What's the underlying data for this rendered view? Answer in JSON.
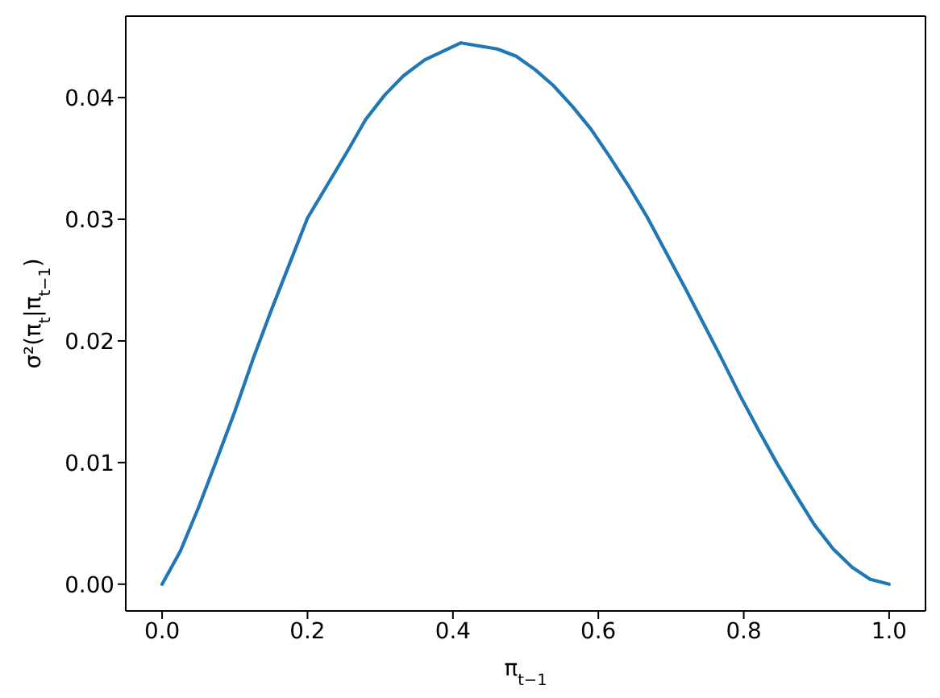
{
  "chart_data": {
    "type": "line",
    "xlabel": "π$_{t−1}$",
    "ylabel": "σ²(π$_{t}$|π$_{t−1}$)",
    "color": "#1f77b4",
    "line_style": "solid",
    "x": [
      0,
      0.025,
      0.05,
      0.075,
      0.1,
      0.125,
      0.15,
      0.175,
      0.2,
      0.231,
      0.256,
      0.28,
      0.306,
      0.332,
      0.361,
      0.411,
      0.461,
      0.487,
      0.513,
      0.538,
      0.564,
      0.59,
      0.615,
      0.641,
      0.667,
      0.692,
      0.718,
      0.744,
      0.77,
      0.795,
      0.821,
      0.846,
      0.872,
      0.897,
      0.923,
      0.949,
      0.974,
      1.0
    ],
    "values": [
      0,
      0.0027,
      0.0063,
      0.0102,
      0.0142,
      0.0185,
      0.0225,
      0.0263,
      0.0301,
      0.0332,
      0.0357,
      0.0382,
      0.0402,
      0.0418,
      0.0431,
      0.0445,
      0.044,
      0.0434,
      0.0423,
      0.041,
      0.0393,
      0.0374,
      0.0352,
      0.0328,
      0.0302,
      0.0274,
      0.0245,
      0.0215,
      0.0185,
      0.0155,
      0.0126,
      0.0099,
      0.0073,
      0.0049,
      0.0029,
      0.0014,
      0.0004,
      0
    ],
    "xlim": [
      -0.05,
      1.05
    ],
    "ylim": [
      -0.0022,
      0.0467
    ],
    "xticks": [
      {
        "value": 0,
        "label": "0.0"
      },
      {
        "value": 0.2,
        "label": "0.2"
      },
      {
        "value": 0.4,
        "label": "0.4"
      },
      {
        "value": 0.6,
        "label": "0.6"
      },
      {
        "value": 0.8,
        "label": "0.8"
      },
      {
        "value": 1,
        "label": "1.0"
      }
    ],
    "yticks": [
      {
        "value": 0,
        "label": "0.00"
      },
      {
        "value": 0.01,
        "label": "0.01"
      },
      {
        "value": 0.02,
        "label": "0.02"
      },
      {
        "value": 0.03,
        "label": "0.03"
      },
      {
        "value": 0.04,
        "label": "0.04"
      }
    ]
  }
}
